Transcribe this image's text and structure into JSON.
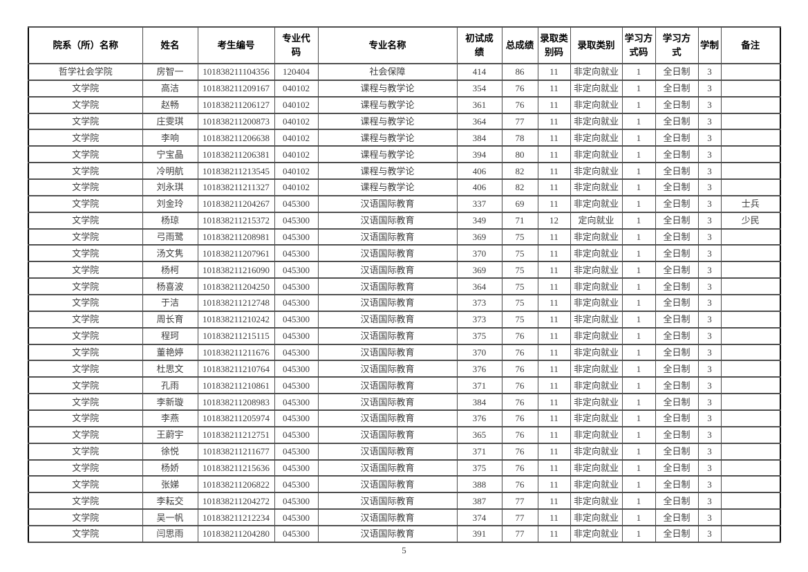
{
  "page": {
    "number": "5"
  },
  "table": {
    "columns": [
      {
        "key": "department",
        "label": "院系（所）名称"
      },
      {
        "key": "name",
        "label": "姓名"
      },
      {
        "key": "candidate_no",
        "label": "考生编号"
      },
      {
        "key": "major_code",
        "label": "专业代\n码"
      },
      {
        "key": "major_name",
        "label": "专业名称"
      },
      {
        "key": "initial_score",
        "label": "初试成\n绩"
      },
      {
        "key": "total_score",
        "label": "总成绩"
      },
      {
        "key": "admission_type_code",
        "label": "录取类\n别码"
      },
      {
        "key": "admission_type",
        "label": "录取类别"
      },
      {
        "key": "study_mode_code",
        "label": "学习方\n式码"
      },
      {
        "key": "study_mode",
        "label": "学习方\n式"
      },
      {
        "key": "duration",
        "label": "学制"
      },
      {
        "key": "remark",
        "label": "备注"
      }
    ],
    "rows": [
      [
        "哲学社会学院",
        "房智一",
        "101838211104356",
        "120404",
        "社会保障",
        "414",
        "86",
        "11",
        "非定向就业",
        "1",
        "全日制",
        "3",
        ""
      ],
      [
        "文学院",
        "高洁",
        "101838211209167",
        "040102",
        "课程与教学论",
        "354",
        "76",
        "11",
        "非定向就业",
        "1",
        "全日制",
        "3",
        ""
      ],
      [
        "文学院",
        "赵畅",
        "101838211206127",
        "040102",
        "课程与教学论",
        "361",
        "76",
        "11",
        "非定向就业",
        "1",
        "全日制",
        "3",
        ""
      ],
      [
        "文学院",
        "庄雯琪",
        "101838211200873",
        "040102",
        "课程与教学论",
        "364",
        "77",
        "11",
        "非定向就业",
        "1",
        "全日制",
        "3",
        ""
      ],
      [
        "文学院",
        "李响",
        "101838211206638",
        "040102",
        "课程与教学论",
        "384",
        "78",
        "11",
        "非定向就业",
        "1",
        "全日制",
        "3",
        ""
      ],
      [
        "文学院",
        "宁宝晶",
        "101838211206381",
        "040102",
        "课程与教学论",
        "394",
        "80",
        "11",
        "非定向就业",
        "1",
        "全日制",
        "3",
        ""
      ],
      [
        "文学院",
        "冷明航",
        "101838211213545",
        "040102",
        "课程与教学论",
        "406",
        "82",
        "11",
        "非定向就业",
        "1",
        "全日制",
        "3",
        ""
      ],
      [
        "文学院",
        "刘永琪",
        "101838211211327",
        "040102",
        "课程与教学论",
        "406",
        "82",
        "11",
        "非定向就业",
        "1",
        "全日制",
        "3",
        ""
      ],
      [
        "文学院",
        "刘金玲",
        "101838211204267",
        "045300",
        "汉语国际教育",
        "337",
        "69",
        "11",
        "非定向就业",
        "1",
        "全日制",
        "3",
        "士兵"
      ],
      [
        "文学院",
        "杨琼",
        "101838211215372",
        "045300",
        "汉语国际教育",
        "349",
        "71",
        "12",
        "定向就业",
        "1",
        "全日制",
        "3",
        "少民"
      ],
      [
        "文学院",
        "弓雨鹭",
        "101838211208981",
        "045300",
        "汉语国际教育",
        "369",
        "75",
        "11",
        "非定向就业",
        "1",
        "全日制",
        "3",
        ""
      ],
      [
        "文学院",
        "汤文隽",
        "101838211207961",
        "045300",
        "汉语国际教育",
        "370",
        "75",
        "11",
        "非定向就业",
        "1",
        "全日制",
        "3",
        ""
      ],
      [
        "文学院",
        "杨柯",
        "101838211216090",
        "045300",
        "汉语国际教育",
        "369",
        "75",
        "11",
        "非定向就业",
        "1",
        "全日制",
        "3",
        ""
      ],
      [
        "文学院",
        "杨喜波",
        "101838211204250",
        "045300",
        "汉语国际教育",
        "364",
        "75",
        "11",
        "非定向就业",
        "1",
        "全日制",
        "3",
        ""
      ],
      [
        "文学院",
        "于洁",
        "101838211212748",
        "045300",
        "汉语国际教育",
        "373",
        "75",
        "11",
        "非定向就业",
        "1",
        "全日制",
        "3",
        ""
      ],
      [
        "文学院",
        "周长育",
        "101838211210242",
        "045300",
        "汉语国际教育",
        "373",
        "75",
        "11",
        "非定向就业",
        "1",
        "全日制",
        "3",
        ""
      ],
      [
        "文学院",
        "程珂",
        "101838211215115",
        "045300",
        "汉语国际教育",
        "375",
        "76",
        "11",
        "非定向就业",
        "1",
        "全日制",
        "3",
        ""
      ],
      [
        "文学院",
        "董艳婷",
        "101838211211676",
        "045300",
        "汉语国际教育",
        "370",
        "76",
        "11",
        "非定向就业",
        "1",
        "全日制",
        "3",
        ""
      ],
      [
        "文学院",
        "杜思文",
        "101838211210764",
        "045300",
        "汉语国际教育",
        "376",
        "76",
        "11",
        "非定向就业",
        "1",
        "全日制",
        "3",
        ""
      ],
      [
        "文学院",
        "孔雨",
        "101838211210861",
        "045300",
        "汉语国际教育",
        "371",
        "76",
        "11",
        "非定向就业",
        "1",
        "全日制",
        "3",
        ""
      ],
      [
        "文学院",
        "李新璇",
        "101838211208983",
        "045300",
        "汉语国际教育",
        "384",
        "76",
        "11",
        "非定向就业",
        "1",
        "全日制",
        "3",
        ""
      ],
      [
        "文学院",
        "李燕",
        "101838211205974",
        "045300",
        "汉语国际教育",
        "376",
        "76",
        "11",
        "非定向就业",
        "1",
        "全日制",
        "3",
        ""
      ],
      [
        "文学院",
        "王蔚宇",
        "101838211212751",
        "045300",
        "汉语国际教育",
        "365",
        "76",
        "11",
        "非定向就业",
        "1",
        "全日制",
        "3",
        ""
      ],
      [
        "文学院",
        "徐悦",
        "101838211211677",
        "045300",
        "汉语国际教育",
        "371",
        "76",
        "11",
        "非定向就业",
        "1",
        "全日制",
        "3",
        ""
      ],
      [
        "文学院",
        "杨娇",
        "101838211215636",
        "045300",
        "汉语国际教育",
        "375",
        "76",
        "11",
        "非定向就业",
        "1",
        "全日制",
        "3",
        ""
      ],
      [
        "文学院",
        "张娣",
        "101838211206822",
        "045300",
        "汉语国际教育",
        "388",
        "76",
        "11",
        "非定向就业",
        "1",
        "全日制",
        "3",
        ""
      ],
      [
        "文学院",
        "李耘交",
        "101838211204272",
        "045300",
        "汉语国际教育",
        "387",
        "77",
        "11",
        "非定向就业",
        "1",
        "全日制",
        "3",
        ""
      ],
      [
        "文学院",
        "吴一帆",
        "101838211212234",
        "045300",
        "汉语国际教育",
        "374",
        "77",
        "11",
        "非定向就业",
        "1",
        "全日制",
        "3",
        ""
      ],
      [
        "文学院",
        "闫思雨",
        "101838211204280",
        "045300",
        "汉语国际教育",
        "391",
        "77",
        "11",
        "非定向就业",
        "1",
        "全日制",
        "3",
        ""
      ]
    ]
  }
}
